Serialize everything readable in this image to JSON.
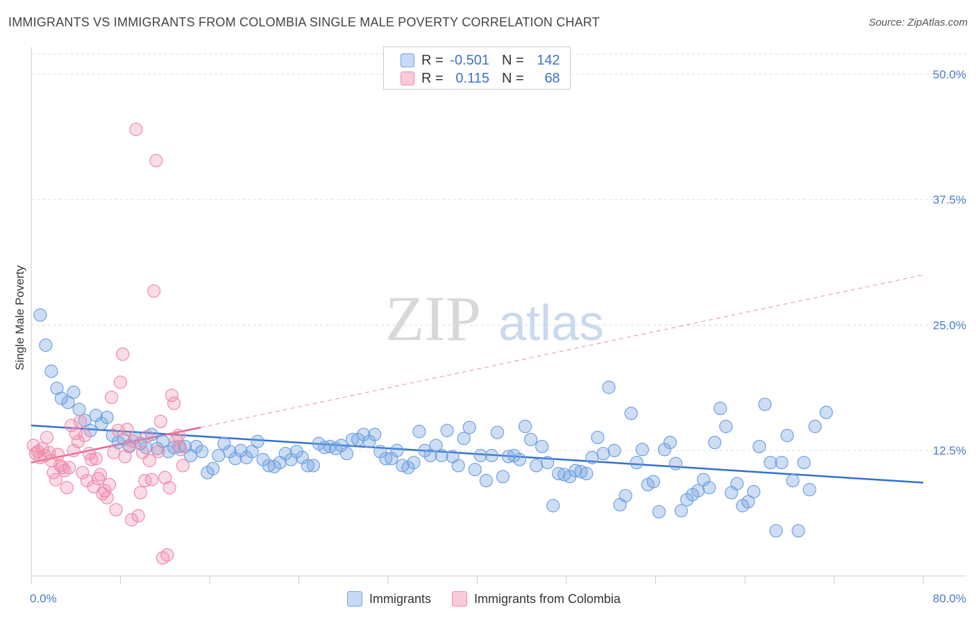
{
  "title": "IMMIGRANTS VS IMMIGRANTS FROM COLOMBIA SINGLE MALE POVERTY CORRELATION CHART",
  "source": "Source: ZipAtlas.com",
  "watermark": {
    "zip": "ZIP",
    "atlas": "atlas"
  },
  "legend_top": {
    "rows": [
      {
        "r_label": "R =",
        "r_value": "-0.501",
        "n_label": "N =",
        "n_value": "142",
        "color": "#6fa0e0"
      },
      {
        "r_label": "R =",
        "r_value": "0.115",
        "n_label": "N =",
        "n_value": "68",
        "color": "#f08aaa"
      }
    ]
  },
  "chart_data": {
    "type": "scatter",
    "xlabel": "",
    "ylabel": "Single Male Poverty",
    "xlim": [
      0,
      80
    ],
    "ylim": [
      0,
      52
    ],
    "x_tick_labels": [
      "0.0%",
      "80.0%"
    ],
    "y_ticks": [
      12.5,
      25.0,
      37.5,
      50.0
    ],
    "y_tick_labels": [
      "12.5%",
      "25.0%",
      "37.5%",
      "50.0%"
    ],
    "grid": true,
    "legend_placement": "bottom",
    "series": [
      {
        "name": "Immigrants",
        "color": "#6fa0e0",
        "trend": {
          "x0": 0,
          "y0": 15.0,
          "x1": 80,
          "y1": 9.3
        },
        "points": [
          [
            0.8,
            26.0
          ],
          [
            1.3,
            23.0
          ],
          [
            1.8,
            20.4
          ],
          [
            2.3,
            18.7
          ],
          [
            2.7,
            17.7
          ],
          [
            3.3,
            17.3
          ],
          [
            3.8,
            18.3
          ],
          [
            4.3,
            16.6
          ],
          [
            4.8,
            15.5
          ],
          [
            5.3,
            14.5
          ],
          [
            5.8,
            16.0
          ],
          [
            6.3,
            15.2
          ],
          [
            6.8,
            15.8
          ],
          [
            7.3,
            14.0
          ],
          [
            7.8,
            13.3
          ],
          [
            8.3,
            13.6
          ],
          [
            8.8,
            12.9
          ],
          [
            9.3,
            13.8
          ],
          [
            9.8,
            13.2
          ],
          [
            10.3,
            12.8
          ],
          [
            10.8,
            14.1
          ],
          [
            11.3,
            12.7
          ],
          [
            11.8,
            13.4
          ],
          [
            12.3,
            12.4
          ],
          [
            12.8,
            12.8
          ],
          [
            13.3,
            12.9
          ],
          [
            13.8,
            12.9
          ],
          [
            14.3,
            12.0
          ],
          [
            14.8,
            12.9
          ],
          [
            15.3,
            12.4
          ],
          [
            15.8,
            10.3
          ],
          [
            16.3,
            10.7
          ],
          [
            16.8,
            12.0
          ],
          [
            17.3,
            13.2
          ],
          [
            17.8,
            12.4
          ],
          [
            18.3,
            11.7
          ],
          [
            18.8,
            12.5
          ],
          [
            19.3,
            11.8
          ],
          [
            19.8,
            12.4
          ],
          [
            20.3,
            13.4
          ],
          [
            20.8,
            11.6
          ],
          [
            21.3,
            11.0
          ],
          [
            21.8,
            10.9
          ],
          [
            22.3,
            11.3
          ],
          [
            22.8,
            12.2
          ],
          [
            23.3,
            11.6
          ],
          [
            23.8,
            12.4
          ],
          [
            24.3,
            11.8
          ],
          [
            24.8,
            11.0
          ],
          [
            25.3,
            11.0
          ],
          [
            25.8,
            13.2
          ],
          [
            26.3,
            12.8
          ],
          [
            26.8,
            12.9
          ],
          [
            27.3,
            12.7
          ],
          [
            27.8,
            13.0
          ],
          [
            28.3,
            12.2
          ],
          [
            28.8,
            13.6
          ],
          [
            29.3,
            13.6
          ],
          [
            29.8,
            14.1
          ],
          [
            30.3,
            13.4
          ],
          [
            30.8,
            14.1
          ],
          [
            31.3,
            12.4
          ],
          [
            31.8,
            11.7
          ],
          [
            32.3,
            11.7
          ],
          [
            32.8,
            12.5
          ],
          [
            33.3,
            11.0
          ],
          [
            33.8,
            10.8
          ],
          [
            34.3,
            11.3
          ],
          [
            34.8,
            14.4
          ],
          [
            35.3,
            12.5
          ],
          [
            35.8,
            12.0
          ],
          [
            36.3,
            13.0
          ],
          [
            36.8,
            12.0
          ],
          [
            37.3,
            14.5
          ],
          [
            37.8,
            11.9
          ],
          [
            38.3,
            11.0
          ],
          [
            38.8,
            13.7
          ],
          [
            39.3,
            14.8
          ],
          [
            39.8,
            10.6
          ],
          [
            40.3,
            12.0
          ],
          [
            40.8,
            9.5
          ],
          [
            41.3,
            12.0
          ],
          [
            41.8,
            14.3
          ],
          [
            42.3,
            9.9
          ],
          [
            42.8,
            11.9
          ],
          [
            43.3,
            12.0
          ],
          [
            43.8,
            11.6
          ],
          [
            44.3,
            14.9
          ],
          [
            44.8,
            13.6
          ],
          [
            45.3,
            11.0
          ],
          [
            45.8,
            12.9
          ],
          [
            46.3,
            11.3
          ],
          [
            46.8,
            7.0
          ],
          [
            47.3,
            10.2
          ],
          [
            47.8,
            10.1
          ],
          [
            48.3,
            9.9
          ],
          [
            48.8,
            10.5
          ],
          [
            49.3,
            10.4
          ],
          [
            49.8,
            10.2
          ],
          [
            50.3,
            11.8
          ],
          [
            50.8,
            13.8
          ],
          [
            51.3,
            12.2
          ],
          [
            51.8,
            18.8
          ],
          [
            52.3,
            12.5
          ],
          [
            52.8,
            7.1
          ],
          [
            53.3,
            8.0
          ],
          [
            53.8,
            16.2
          ],
          [
            54.3,
            11.3
          ],
          [
            54.8,
            12.6
          ],
          [
            55.3,
            9.1
          ],
          [
            55.8,
            9.4
          ],
          [
            56.3,
            6.4
          ],
          [
            56.8,
            12.6
          ],
          [
            57.3,
            13.3
          ],
          [
            57.8,
            11.2
          ],
          [
            58.3,
            6.5
          ],
          [
            58.8,
            7.6
          ],
          [
            59.3,
            8.1
          ],
          [
            59.8,
            8.5
          ],
          [
            60.3,
            9.6
          ],
          [
            60.8,
            8.8
          ],
          [
            61.3,
            13.3
          ],
          [
            61.8,
            16.7
          ],
          [
            62.3,
            14.9
          ],
          [
            62.8,
            8.3
          ],
          [
            63.3,
            9.2
          ],
          [
            63.8,
            7.0
          ],
          [
            64.3,
            7.4
          ],
          [
            64.8,
            8.4
          ],
          [
            65.3,
            12.9
          ],
          [
            65.8,
            17.1
          ],
          [
            66.3,
            11.3
          ],
          [
            66.8,
            4.5
          ],
          [
            67.3,
            11.3
          ],
          [
            67.8,
            14.0
          ],
          [
            68.3,
            9.5
          ],
          [
            68.8,
            4.5
          ],
          [
            69.3,
            11.3
          ],
          [
            69.8,
            8.6
          ],
          [
            70.3,
            14.9
          ],
          [
            71.3,
            16.3
          ]
        ]
      },
      {
        "name": "Immigrants from Colombia",
        "color": "#f08aaa",
        "trend": {
          "x0": 0,
          "y0": 11.3,
          "x1": 15.2,
          "y1": 14.8
        },
        "trend_ext": {
          "x0": 15.2,
          "y0": 14.8,
          "x1": 80,
          "y1": 30.0
        },
        "points": [
          [
            0.2,
            13.0
          ],
          [
            0.4,
            12.2
          ],
          [
            0.6,
            12.4
          ],
          [
            0.8,
            11.8
          ],
          [
            1.0,
            12.7
          ],
          [
            1.2,
            12.0
          ],
          [
            1.4,
            13.8
          ],
          [
            1.6,
            12.3
          ],
          [
            1.8,
            11.5
          ],
          [
            2.0,
            10.3
          ],
          [
            2.2,
            9.6
          ],
          [
            2.4,
            12.1
          ],
          [
            2.6,
            11.0
          ],
          [
            2.8,
            10.8
          ],
          [
            3.0,
            10.5
          ],
          [
            3.2,
            8.8
          ],
          [
            3.4,
            10.8
          ],
          [
            3.6,
            15.0
          ],
          [
            3.8,
            12.5
          ],
          [
            4.0,
            14.2
          ],
          [
            4.2,
            13.4
          ],
          [
            4.4,
            15.4
          ],
          [
            4.6,
            10.3
          ],
          [
            4.8,
            14.0
          ],
          [
            5.0,
            9.5
          ],
          [
            5.2,
            12.2
          ],
          [
            5.4,
            11.6
          ],
          [
            5.6,
            8.9
          ],
          [
            5.8,
            11.7
          ],
          [
            6.0,
            9.7
          ],
          [
            6.2,
            10.1
          ],
          [
            6.4,
            8.2
          ],
          [
            6.6,
            8.5
          ],
          [
            6.8,
            7.8
          ],
          [
            7.0,
            9.1
          ],
          [
            7.2,
            17.8
          ],
          [
            7.4,
            12.3
          ],
          [
            7.6,
            6.6
          ],
          [
            7.8,
            14.5
          ],
          [
            8.0,
            19.3
          ],
          [
            8.2,
            22.1
          ],
          [
            8.4,
            11.9
          ],
          [
            8.6,
            14.6
          ],
          [
            8.8,
            13.0
          ],
          [
            9.0,
            5.6
          ],
          [
            9.2,
            13.4
          ],
          [
            9.4,
            44.5
          ],
          [
            9.6,
            6.0
          ],
          [
            9.8,
            8.3
          ],
          [
            10.0,
            12.3
          ],
          [
            10.2,
            9.5
          ],
          [
            10.4,
            13.9
          ],
          [
            10.6,
            11.5
          ],
          [
            10.8,
            9.6
          ],
          [
            11.0,
            28.4
          ],
          [
            11.2,
            41.4
          ],
          [
            11.4,
            12.4
          ],
          [
            11.6,
            15.4
          ],
          [
            11.8,
            1.8
          ],
          [
            12.0,
            9.8
          ],
          [
            12.2,
            2.1
          ],
          [
            12.4,
            8.8
          ],
          [
            12.6,
            18.0
          ],
          [
            12.8,
            17.2
          ],
          [
            13.0,
            13.6
          ],
          [
            13.2,
            14.0
          ],
          [
            13.4,
            12.6
          ],
          [
            13.6,
            11.0
          ]
        ]
      }
    ]
  }
}
